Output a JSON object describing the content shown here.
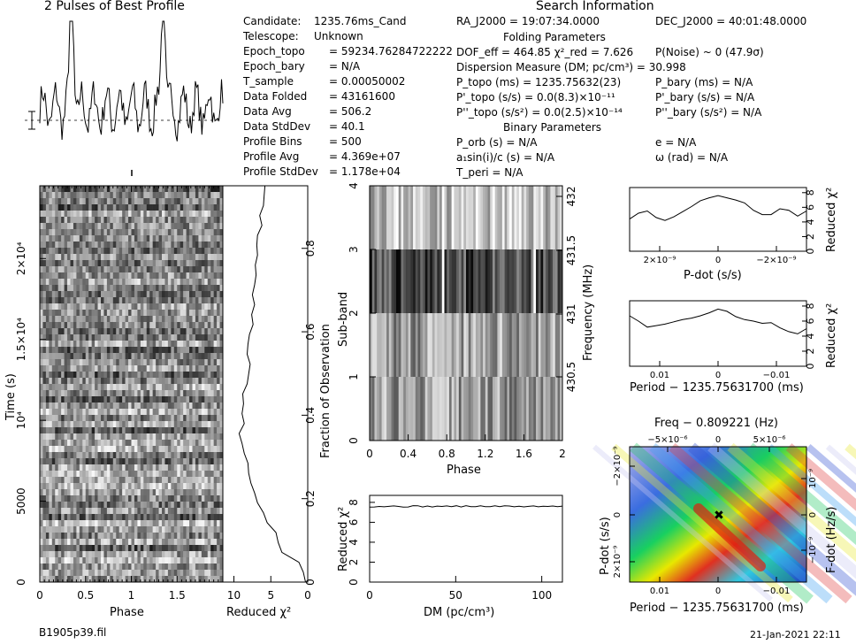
{
  "header": {
    "profile_title": "2 Pulses of Best Profile",
    "search_title": "Search Information",
    "file_label": "B1905p39.fil",
    "date_label": "21-Jan-2021 22:11"
  },
  "info_left": [
    {
      "k": "Candidate:",
      "v": "1235.76ms_Cand"
    },
    {
      "k": "Telescope:",
      "v": "Unknown"
    },
    {
      "k": "Epoch_topo",
      "v": "= 59234.76284722222"
    },
    {
      "k": "Epoch_bary",
      "v": "= N/A"
    },
    {
      "k": "T_sample",
      "v": "= 0.00050002"
    },
    {
      "k": "Data Folded",
      "v": "= 43161600"
    },
    {
      "k": "Data Avg",
      "v": "= 506.2"
    },
    {
      "k": "Data StdDev",
      "v": "= 40.1"
    },
    {
      "k": "Profile Bins",
      "v": "= 500"
    },
    {
      "k": "Profile Avg",
      "v": "= 4.369e+07"
    },
    {
      "k": "Profile StdDev",
      "v": "= 1.178e+04"
    }
  ],
  "info_right": {
    "ra": "RA_J2000 = 19:07:34.0000",
    "dec": "DEC_J2000 = 40:01:48.0000",
    "folding_title": "Folding Parameters",
    "dof": "DOF_eff = 464.85   χ²_red = 7.626",
    "pnoise": "P(Noise) ~ 0    (47.9σ)",
    "dm": "Dispersion Measure (DM; pc/cm³) = 30.998",
    "ptopo": "P_topo (ms) = 1235.75632(23)",
    "pbary": "P_bary (ms) = N/A",
    "pdtopo": "P'_topo (s/s) = 0.0(8.3)×10⁻¹¹",
    "pdbary": "P'_bary (s/s) = N/A",
    "pddtopo": "P''_topo (s/s²) = 0.0(2.5)×10⁻¹⁴",
    "pddbary": "P''_bary (s/s²) = N/A",
    "binary_title": "Binary Parameters",
    "porb": "P_orb (s) = N/A",
    "ecc": "e = N/A",
    "a1": "a₁sin(i)/c (s) = N/A",
    "omega": "ω (rad) = N/A",
    "tperi": "T_peri = N/A"
  },
  "chart_data": [
    {
      "id": "profile",
      "type": "line",
      "title": "2 Pulses of Best Profile",
      "x_range": [
        0,
        2
      ],
      "peaks": [
        0.35,
        1.35
      ]
    },
    {
      "id": "time_phase",
      "type": "heatmap",
      "xlabel": "Phase",
      "ylabel": "Time (s)",
      "xticks": [
        "0",
        "0.5",
        "1",
        "1.5"
      ],
      "yticks": [
        "0",
        "5000",
        "10⁴",
        "1.5×10⁴",
        "2×10⁴"
      ],
      "xlim": [
        0,
        2
      ],
      "ylim": [
        0,
        24500
      ]
    },
    {
      "id": "chi_time",
      "type": "line",
      "xlabel": "Reduced χ²",
      "ylabel": "Fraction of Observation",
      "xticks": [
        "10",
        "5",
        "0"
      ],
      "yticks": [
        "0",
        "0.2",
        "0.4",
        "0.6",
        "0.8"
      ],
      "values": [
        0.3,
        0.6,
        1.2,
        3.5,
        4.0,
        4.3,
        5.5,
        6.0,
        6.8,
        7.2,
        7.7,
        8.0,
        8.1,
        8.6,
        8.9,
        9.3,
        8.6,
        8.9,
        8.7,
        8.8,
        8.2,
        8.0,
        7.8,
        8.2,
        8.1,
        7.9,
        7.4,
        7.6,
        7.2,
        7.5,
        7.2,
        7.0,
        7.1,
        6.8,
        6.9,
        6.8,
        6.2,
        6.5,
        6.0,
        5.9,
        5.8
      ]
    },
    {
      "id": "subband",
      "type": "heatmap",
      "xlabel": "Phase",
      "ylabel": "Sub-band",
      "y2label": "Frequency (MHz)",
      "xticks": [
        "0",
        "0.4",
        "0.8",
        "1.2",
        "1.6",
        "2"
      ],
      "yticks": [
        "0",
        "1",
        "2",
        "3",
        "4"
      ],
      "y2ticks": [
        "430.5",
        "431",
        "431.5",
        "432"
      ]
    },
    {
      "id": "dm_chi",
      "type": "line",
      "xlabel": "DM (pc/cm³)",
      "ylabel": "Reduced χ²",
      "xticks": [
        "0",
        "50",
        "100"
      ],
      "yticks": [
        "0",
        "2",
        "4",
        "6",
        "8"
      ],
      "xlim": [
        0,
        112
      ],
      "ylim": [
        0,
        8.7
      ],
      "value": 7.6
    },
    {
      "id": "pdot_chi",
      "type": "line",
      "xlabel": "P-dot (s/s)",
      "ylabel": "Reduced χ²",
      "xticks": [
        "2×10⁻⁹",
        "0",
        "−2×10⁻⁹"
      ],
      "yticks": [
        "0",
        "2",
        "4",
        "6",
        "8"
      ],
      "ylim": [
        0,
        8.7
      ],
      "values": [
        4.4,
        5.2,
        5.5,
        4.6,
        4.2,
        4.7,
        5.4,
        6.1,
        6.9,
        7.3,
        7.6,
        7.3,
        7.0,
        6.6,
        5.6,
        5.0,
        5.0,
        5.8,
        5.6,
        4.8,
        5.5
      ]
    },
    {
      "id": "period_chi",
      "type": "line",
      "xlabel": "Period − 1235.75631700 (ms)",
      "ylabel": "Reduced χ²",
      "xticks": [
        "0.01",
        "0",
        "−0.01"
      ],
      "yticks": [
        "0",
        "2",
        "4",
        "6",
        "8"
      ],
      "ylim": [
        0,
        8.7
      ],
      "values": [
        6.7,
        6.0,
        5.2,
        5.4,
        5.6,
        5.9,
        6.2,
        6.4,
        6.7,
        7.1,
        7.6,
        7.3,
        6.6,
        6.2,
        6.0,
        5.7,
        5.8,
        5.1,
        4.6,
        4.3,
        5.0
      ]
    },
    {
      "id": "pp_dot",
      "type": "heatmap",
      "title": "Freq − 0.809221 (Hz)",
      "xlabel": "Period − 1235.75631700 (ms)",
      "ylabel": "P-dot (s/s)",
      "y2label": "F-dot (Hz/s)",
      "xticks": [
        "0.01",
        "0",
        "−0.01"
      ],
      "topticks": [
        "−5×10⁻⁶",
        "0",
        "5×10⁻⁶"
      ],
      "yticks": [
        "2×10⁻⁹",
        "0",
        "−2×10⁻⁹"
      ],
      "y2ticks": [
        "−10⁻⁹",
        "0",
        "10⁻⁹"
      ]
    }
  ]
}
